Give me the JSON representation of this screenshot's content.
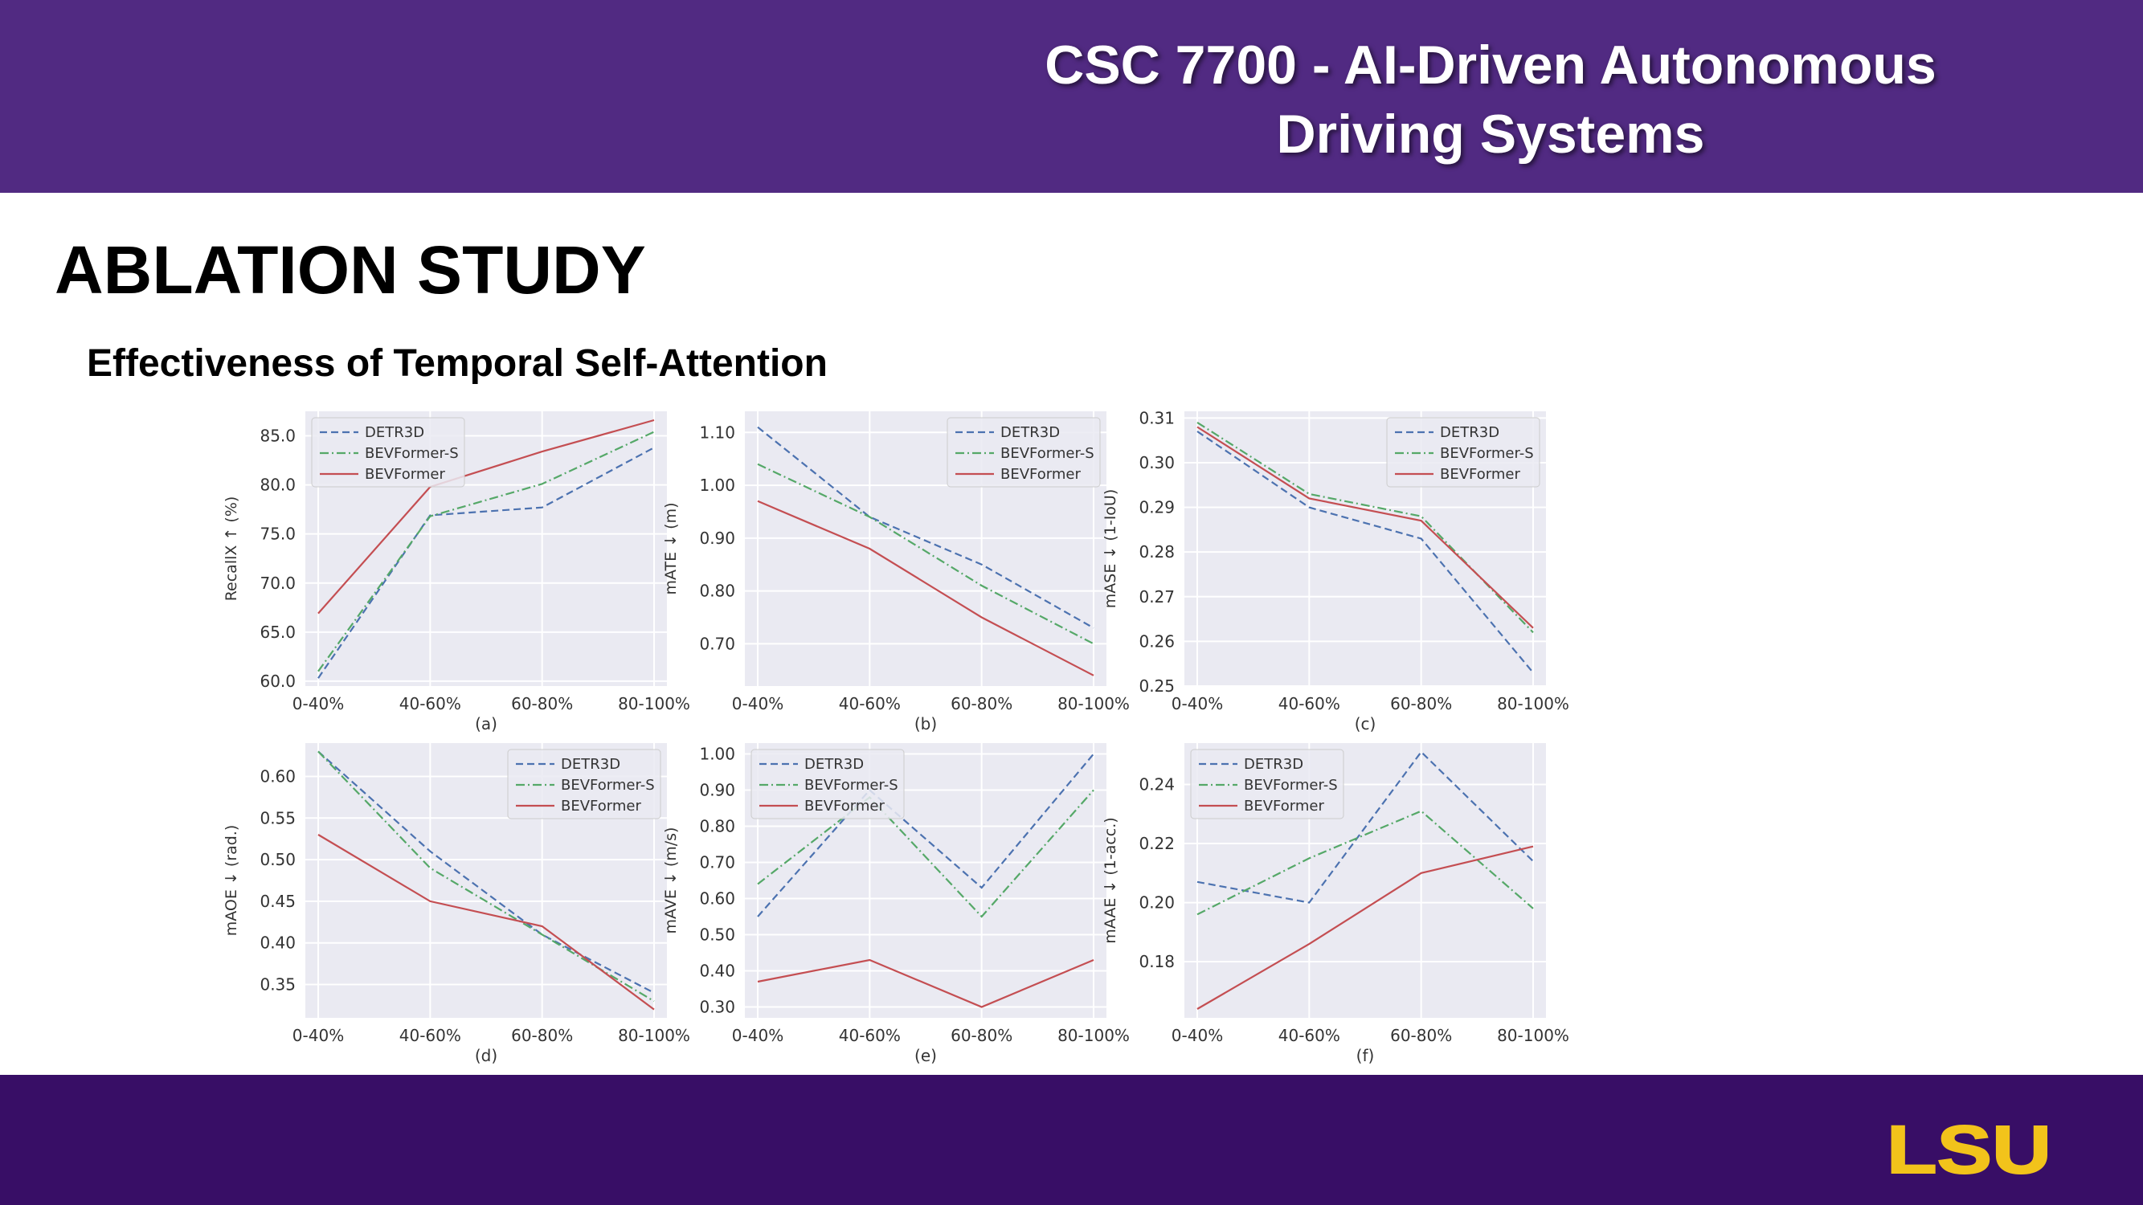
{
  "header": {
    "course_line1": "CSC 7700 - AI-Driven Autonomous",
    "course_line2": "Driving Systems",
    "background": "#512a82"
  },
  "slide": {
    "title": "ABLATION STUDY",
    "subtitle": "Effectiveness of Temporal Self-Attention"
  },
  "footer": {
    "background": "#380e66",
    "logo_text": "LSU",
    "logo_color": "#f2c31b"
  },
  "chart_data": [
    {
      "type": "line",
      "caption": "(a)",
      "ylabel": "RecallX ↑ (%)",
      "categories": [
        "0-40%",
        "40-60%",
        "60-80%",
        "80-100%"
      ],
      "ylim": [
        59.5,
        87.5
      ],
      "yticks": [
        60.0,
        65.0,
        70.0,
        75.0,
        80.0,
        85.0
      ],
      "ydecimals": 1,
      "legend": "top-left",
      "grid": true,
      "series": [
        {
          "name": "DETR3D",
          "values": [
            60.3,
            76.9,
            77.7,
            83.8
          ],
          "color": "#4c72b0",
          "dash": "dashed"
        },
        {
          "name": "BEVFormer-S",
          "values": [
            61.0,
            76.8,
            80.1,
            85.4
          ],
          "color": "#55a868",
          "dash": "dashdot"
        },
        {
          "name": "BEVFormer",
          "values": [
            66.9,
            79.8,
            83.4,
            86.6
          ],
          "color": "#c44e52",
          "dash": "solid"
        }
      ]
    },
    {
      "type": "line",
      "caption": "(b)",
      "ylabel": "mATE ↓ (m)",
      "categories": [
        "0-40%",
        "40-60%",
        "60-80%",
        "80-100%"
      ],
      "ylim": [
        0.62,
        1.14
      ],
      "yticks": [
        0.7,
        0.8,
        0.9,
        1.0,
        1.1
      ],
      "ydecimals": 2,
      "legend": "top-right",
      "grid": true,
      "series": [
        {
          "name": "DETR3D",
          "values": [
            1.11,
            0.94,
            0.85,
            0.73
          ],
          "color": "#4c72b0",
          "dash": "dashed"
        },
        {
          "name": "BEVFormer-S",
          "values": [
            1.04,
            0.94,
            0.81,
            0.7
          ],
          "color": "#55a868",
          "dash": "dashdot"
        },
        {
          "name": "BEVFormer",
          "values": [
            0.97,
            0.88,
            0.75,
            0.64
          ],
          "color": "#c44e52",
          "dash": "solid"
        }
      ]
    },
    {
      "type": "line",
      "caption": "(c)",
      "ylabel": "mASE ↓ (1-IoU)",
      "categories": [
        "0-40%",
        "40-60%",
        "60-80%",
        "80-100%"
      ],
      "ylim": [
        0.25,
        0.3115
      ],
      "yticks": [
        0.25,
        0.26,
        0.27,
        0.28,
        0.29,
        0.3,
        0.31
      ],
      "ydecimals": 2,
      "legend": "top-right",
      "grid": true,
      "series": [
        {
          "name": "DETR3D",
          "values": [
            0.307,
            0.29,
            0.283,
            0.253
          ],
          "color": "#4c72b0",
          "dash": "dashed"
        },
        {
          "name": "BEVFormer-S",
          "values": [
            0.309,
            0.293,
            0.288,
            0.262
          ],
          "color": "#55a868",
          "dash": "dashdot"
        },
        {
          "name": "BEVFormer",
          "values": [
            0.308,
            0.292,
            0.287,
            0.263
          ],
          "color": "#c44e52",
          "dash": "solid"
        }
      ]
    },
    {
      "type": "line",
      "caption": "(d)",
      "ylabel": "mAOE ↓ (rad.)",
      "categories": [
        "0-40%",
        "40-60%",
        "60-80%",
        "80-100%"
      ],
      "ylim": [
        0.31,
        0.64
      ],
      "yticks": [
        0.35,
        0.4,
        0.45,
        0.5,
        0.55,
        0.6
      ],
      "ydecimals": 2,
      "legend": "top-right",
      "grid": true,
      "series": [
        {
          "name": "DETR3D",
          "values": [
            0.63,
            0.51,
            0.41,
            0.34
          ],
          "color": "#4c72b0",
          "dash": "dashed"
        },
        {
          "name": "BEVFormer-S",
          "values": [
            0.63,
            0.49,
            0.41,
            0.33
          ],
          "color": "#55a868",
          "dash": "dashdot"
        },
        {
          "name": "BEVFormer",
          "values": [
            0.53,
            0.45,
            0.42,
            0.32
          ],
          "color": "#c44e52",
          "dash": "solid"
        }
      ]
    },
    {
      "type": "line",
      "caption": "(e)",
      "ylabel": "mAVE ↓ (m/s)",
      "categories": [
        "0-40%",
        "40-60%",
        "60-80%",
        "80-100%"
      ],
      "ylim": [
        0.27,
        1.03
      ],
      "yticks": [
        0.3,
        0.4,
        0.5,
        0.6,
        0.7,
        0.8,
        0.9,
        1.0
      ],
      "ydecimals": 2,
      "legend": "top-left",
      "grid": true,
      "series": [
        {
          "name": "DETR3D",
          "values": [
            0.55,
            0.9,
            0.63,
            1.0
          ],
          "color": "#4c72b0",
          "dash": "dashed"
        },
        {
          "name": "BEVFormer-S",
          "values": [
            0.64,
            0.88,
            0.55,
            0.9
          ],
          "color": "#55a868",
          "dash": "dashdot"
        },
        {
          "name": "BEVFormer",
          "values": [
            0.37,
            0.43,
            0.3,
            0.43
          ],
          "color": "#c44e52",
          "dash": "solid"
        }
      ]
    },
    {
      "type": "line",
      "caption": "(f)",
      "ylabel": "mAAE ↓ (1-acc.)",
      "categories": [
        "0-40%",
        "40-60%",
        "60-80%",
        "80-100%"
      ],
      "ylim": [
        0.161,
        0.254
      ],
      "yticks": [
        0.18,
        0.2,
        0.22,
        0.24
      ],
      "ydecimals": 2,
      "legend": "top-left",
      "grid": true,
      "series": [
        {
          "name": "DETR3D",
          "values": [
            0.207,
            0.2,
            0.251,
            0.214
          ],
          "color": "#4c72b0",
          "dash": "dashed"
        },
        {
          "name": "BEVFormer-S",
          "values": [
            0.196,
            0.215,
            0.231,
            0.198
          ],
          "color": "#55a868",
          "dash": "dashdot"
        },
        {
          "name": "BEVFormer",
          "values": [
            0.164,
            0.186,
            0.21,
            0.219
          ],
          "color": "#c44e52",
          "dash": "solid"
        }
      ]
    }
  ]
}
